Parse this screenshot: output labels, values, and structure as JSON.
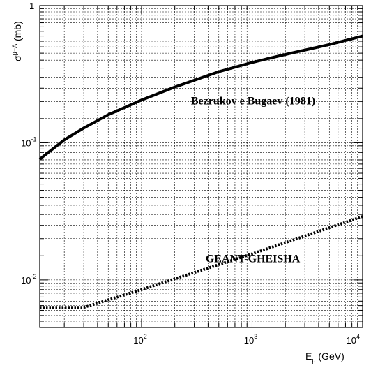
{
  "chart_data": {
    "type": "line",
    "title": "",
    "x_scale": "log",
    "y_scale": "log",
    "xlim": [
      12,
      10000
    ],
    "ylim": [
      0.0045,
      1
    ],
    "grid": true,
    "xlabel": {
      "main": "E",
      "sub": "μ",
      "unit": " (GeV)"
    },
    "ylabel": {
      "main": "σ",
      "sup": "μ−A",
      "unit": " (mb)"
    },
    "x_ticks": [
      {
        "value": 100,
        "base": "10",
        "exp": "2"
      },
      {
        "value": 1000,
        "base": "10",
        "exp": "3"
      },
      {
        "value": 10000,
        "base": "10",
        "exp": "4"
      }
    ],
    "y_ticks": [
      {
        "value": 1,
        "base": "1",
        "exp": ""
      },
      {
        "value": 0.1,
        "base": "10",
        "exp": "-1"
      },
      {
        "value": 0.01,
        "base": "10",
        "exp": "-2"
      }
    ],
    "series": [
      {
        "style": "solid",
        "color": "#000000",
        "x": [
          12,
          20,
          30,
          50,
          100,
          200,
          500,
          1000,
          2000,
          5000,
          10000
        ],
        "y": [
          0.076,
          0.105,
          0.128,
          0.16,
          0.205,
          0.255,
          0.33,
          0.385,
          0.44,
          0.52,
          0.6
        ]
      },
      {
        "style": "dotted",
        "color": "#000000",
        "x": [
          12,
          30,
          100,
          1000,
          10000
        ],
        "y": [
          0.0063,
          0.0063,
          0.0085,
          0.0155,
          0.029
        ]
      }
    ],
    "annotations": [
      {
        "text": "Bezrukov e Bugaev (1981)",
        "x": 280,
        "y": 0.19
      },
      {
        "text": "GEANT-GHEISHA",
        "x": 380,
        "y": 0.0135
      }
    ]
  }
}
